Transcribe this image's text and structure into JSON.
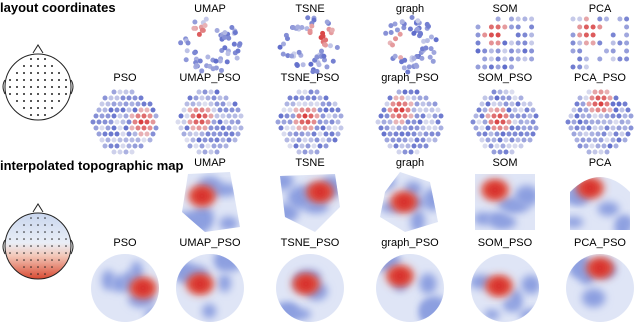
{
  "sections": [
    {
      "title": "layout coordinates",
      "top_row": [
        "UMAP",
        "TSNE",
        "graph",
        "SOM",
        "PCA"
      ],
      "bottom_row": [
        "PSO",
        "UMAP_PSO",
        "TSNE_PSO",
        "graph_PSO",
        "SOM_PSO",
        "PCA_PSO"
      ]
    },
    {
      "title": "interpolated topographic map",
      "top_row": [
        "UMAP",
        "TSNE",
        "graph",
        "SOM",
        "PCA"
      ],
      "bottom_row": [
        "PSO",
        "UMAP_PSO",
        "TSNE_PSO",
        "graph_PSO",
        "SOM_PSO",
        "PCA_PSO"
      ]
    }
  ]
}
